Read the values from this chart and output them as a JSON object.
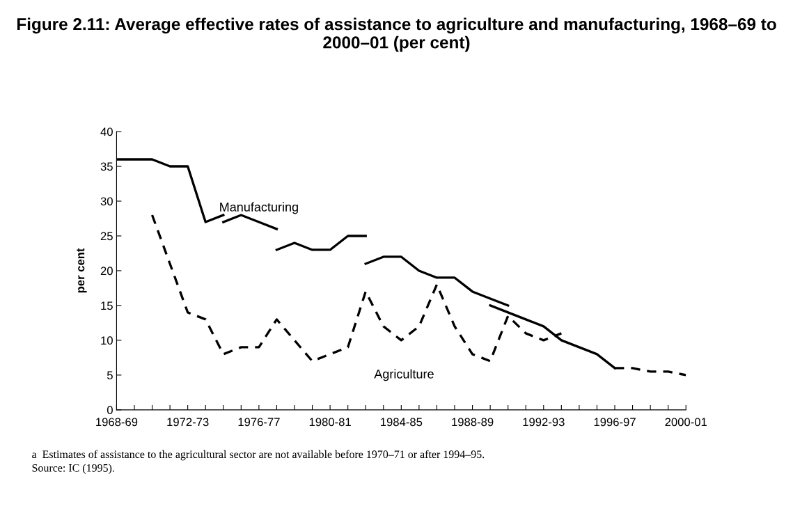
{
  "chart_data": {
    "type": "line",
    "title": "Figure 2.11: Average effective rates of assistance to agriculture and manufacturing, 1968–69 to 2000–01 (per cent)",
    "ylabel": "per cent",
    "categories": [
      "1968-69",
      null,
      null,
      null,
      "1972-73",
      null,
      null,
      null,
      "1976-77",
      null,
      null,
      null,
      "1980-81",
      null,
      null,
      null,
      "1984-85",
      null,
      null,
      null,
      "1988-89",
      null,
      null,
      null,
      "1992-93",
      null,
      null,
      null,
      "1996-97",
      null,
      null,
      null,
      "2000-01"
    ],
    "series": [
      {
        "color": "#000000",
        "line_style": "solid",
        "values": [
          36,
          36,
          36,
          35,
          35,
          27,
          28,
          null,
          null,
          null,
          null,
          null,
          null,
          null,
          null,
          null,
          null,
          null,
          null,
          null,
          null,
          null,
          null,
          null,
          null,
          null,
          null,
          null,
          null,
          null,
          null,
          null,
          null
        ]
      },
      {
        "color": "#000000",
        "line_style": "solid",
        "values": [
          null,
          null,
          null,
          null,
          null,
          null,
          27,
          28,
          27,
          26,
          null,
          null,
          null,
          null,
          null,
          null,
          null,
          null,
          null,
          null,
          null,
          null,
          null,
          null,
          null,
          null,
          null,
          null,
          null,
          null,
          null,
          null,
          null
        ]
      },
      {
        "color": "#000000",
        "line_style": "solid",
        "values": [
          null,
          null,
          null,
          null,
          null,
          null,
          null,
          null,
          null,
          23,
          24,
          23,
          23,
          25,
          25,
          null,
          null,
          null,
          null,
          null,
          null,
          null,
          null,
          null,
          null,
          null,
          null,
          null,
          null,
          null,
          null,
          null,
          null
        ]
      },
      {
        "color": "#000000",
        "line_style": "solid",
        "values": [
          null,
          null,
          null,
          null,
          null,
          null,
          null,
          null,
          null,
          null,
          null,
          null,
          null,
          null,
          21,
          22,
          22,
          20,
          19,
          19,
          17,
          16,
          15,
          null,
          null,
          null,
          null,
          null,
          null,
          null,
          null,
          null,
          null
        ]
      },
      {
        "color": "#000000",
        "line_style": "solid",
        "values": [
          null,
          null,
          null,
          null,
          null,
          null,
          null,
          null,
          null,
          null,
          null,
          null,
          null,
          null,
          null,
          null,
          null,
          null,
          null,
          null,
          null,
          15,
          14,
          13,
          12,
          10,
          9,
          8,
          6,
          null,
          null,
          null,
          null
        ]
      },
      {
        "color": "#000000",
        "line_style": "dashed",
        "values": [
          null,
          null,
          null,
          null,
          null,
          null,
          null,
          null,
          null,
          null,
          null,
          null,
          null,
          null,
          null,
          null,
          null,
          null,
          null,
          null,
          null,
          null,
          null,
          null,
          null,
          null,
          null,
          null,
          6,
          6,
          5.5,
          5.5,
          5
        ]
      },
      {
        "color": "#000000",
        "line_style": "dashed",
        "values": [
          null,
          null,
          28,
          21,
          14,
          13,
          8,
          9,
          9,
          13,
          10,
          7,
          8,
          9,
          17,
          12,
          10,
          12,
          18,
          12,
          8,
          7,
          13.5,
          11,
          10,
          11,
          null,
          null,
          null,
          null,
          null,
          null,
          null
        ]
      }
    ],
    "ylim": [
      0,
      40
    ],
    "yticks": [
      0,
      5,
      10,
      15,
      20,
      25,
      30,
      35,
      40
    ],
    "marker": "none",
    "grid": false,
    "annotations": [
      "Manufacturing",
      "Agriculture",
      "a  Estimates of assistance to the agricultural sector are not available before 1970–71 or after 1994–95.",
      "Source: IC (1995)."
    ]
  }
}
